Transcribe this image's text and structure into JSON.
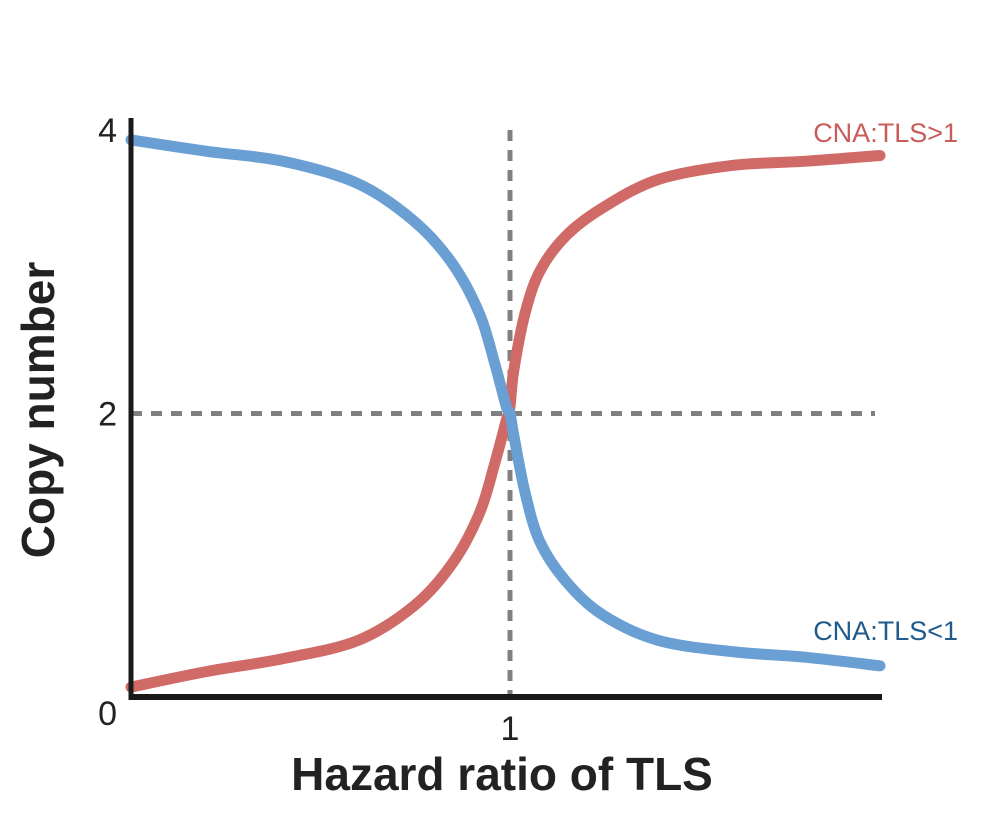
{
  "chart_data": {
    "type": "line",
    "xlabel": "Hazard ratio of TLS",
    "ylabel": "Copy number",
    "ylim": [
      0,
      4
    ],
    "y_ticks": [
      "0",
      "2",
      "4"
    ],
    "x_ticks": [
      "1"
    ],
    "reference_lines": {
      "x": 1,
      "y": 2,
      "style": "dashed",
      "color": "#808080"
    },
    "series": [
      {
        "name": "CNA:TLS>1",
        "color": "#d06a66",
        "x": [
          0.0,
          0.2,
          0.4,
          0.6,
          0.75,
          0.85,
          0.92,
          0.96,
          0.99,
          1.0,
          1.01,
          1.04,
          1.08,
          1.15,
          1.25,
          1.4,
          1.6,
          1.8,
          2.0
        ],
        "y": [
          0.07,
          0.18,
          0.27,
          0.4,
          0.65,
          0.95,
          1.3,
          1.65,
          1.95,
          2.05,
          2.3,
          2.7,
          3.0,
          3.25,
          3.45,
          3.65,
          3.75,
          3.78,
          3.82
        ]
      },
      {
        "name": "CNA:TLS<1",
        "color": "#6a9fd4",
        "x": [
          0.0,
          0.2,
          0.4,
          0.6,
          0.75,
          0.85,
          0.92,
          0.96,
          0.99,
          1.0,
          1.01,
          1.04,
          1.08,
          1.15,
          1.25,
          1.4,
          1.6,
          1.8,
          2.0
        ],
        "y": [
          3.93,
          3.85,
          3.78,
          3.62,
          3.35,
          3.05,
          2.7,
          2.35,
          2.05,
          2.0,
          1.85,
          1.45,
          1.1,
          0.82,
          0.58,
          0.4,
          0.32,
          0.28,
          0.22
        ]
      }
    ],
    "series_label_colors": [
      "#c85c5a",
      "#1f5a8c"
    ]
  }
}
